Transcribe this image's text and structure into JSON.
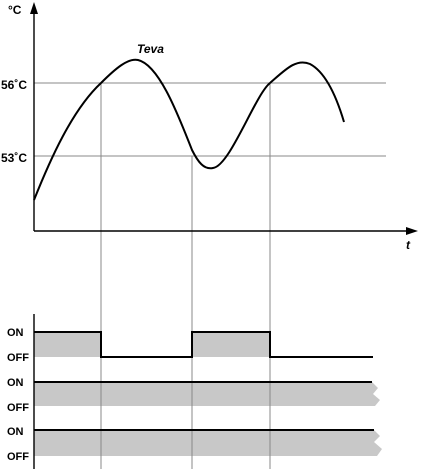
{
  "chart_data": {
    "type": "line",
    "y_unit_label": "°C",
    "x_axis_label": "t",
    "curve_label": "Teva",
    "ref_lines": [
      {
        "label": "56˚C",
        "value": 56
      },
      {
        "label": "53˚C",
        "value": 53
      }
    ],
    "state_labels": {
      "on": "ON",
      "off": "OFF"
    },
    "channels": [
      {
        "id": "ch1",
        "states": [
          "ON",
          "OFF",
          "ON",
          "OFF"
        ]
      },
      {
        "id": "ch2",
        "states": [
          "ON"
        ]
      },
      {
        "id": "ch3",
        "states": [
          "ON"
        ]
      }
    ]
  },
  "colors": {
    "line": "#000000",
    "grid": "#888888",
    "fill": "#c8c8c8"
  }
}
